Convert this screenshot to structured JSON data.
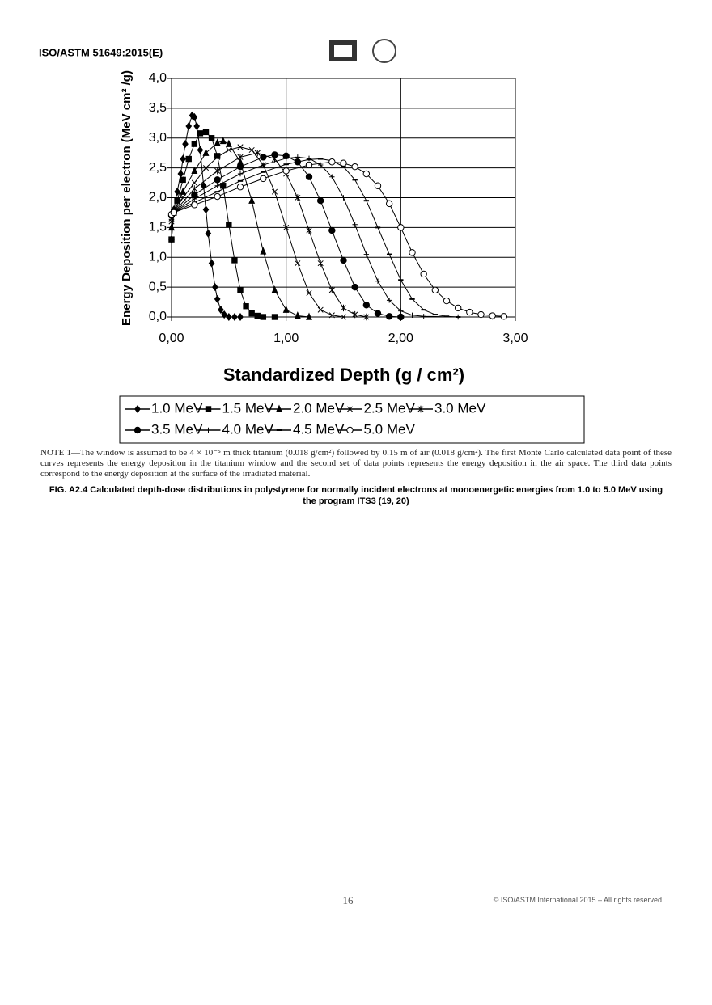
{
  "header": "ISO/ASTM 51649:2015(E)",
  "chart_data": {
    "type": "line",
    "y_label": "Energy Deposition per electron (MeV cm² /g)",
    "x_label": "Standardized Depth (g / cm²)",
    "xlim": [
      0,
      3
    ],
    "ylim": [
      0,
      4
    ],
    "xticks": [
      {
        "value": 0,
        "label": "0,00"
      },
      {
        "value": 1,
        "label": "1,00"
      },
      {
        "value": 2,
        "label": "2,00"
      },
      {
        "value": 3,
        "label": "3,00"
      }
    ],
    "yticks": [
      {
        "value": 0,
        "label": "0,0"
      },
      {
        "value": 0.5,
        "label": "0,5"
      },
      {
        "value": 1,
        "label": "1,0"
      },
      {
        "value": 1.5,
        "label": "1,5"
      },
      {
        "value": 2,
        "label": "2,0"
      },
      {
        "value": 2.5,
        "label": "2,5"
      },
      {
        "value": 3,
        "label": "3,0"
      },
      {
        "value": 3.5,
        "label": "3,5"
      },
      {
        "value": 4,
        "label": "4,0"
      }
    ],
    "grid": true,
    "series": [
      {
        "name": "1.0 MeV",
        "color": "#000000",
        "marker": "diamond",
        "x": [
          0,
          0.02,
          0.05,
          0.08,
          0.1,
          0.12,
          0.15,
          0.18,
          0.2,
          0.22,
          0.25,
          0.28,
          0.3,
          0.32,
          0.35,
          0.38,
          0.4,
          0.43,
          0.46,
          0.5,
          0.55,
          0.6
        ],
        "values": [
          1.3,
          1.8,
          2.1,
          2.4,
          2.65,
          2.9,
          3.2,
          3.38,
          3.35,
          3.2,
          2.8,
          2.2,
          1.8,
          1.4,
          0.9,
          0.5,
          0.3,
          0.12,
          0.04,
          0,
          0,
          0
        ]
      },
      {
        "name": "1.5 MeV",
        "color": "#000000",
        "marker": "square",
        "x": [
          0,
          0.02,
          0.05,
          0.1,
          0.15,
          0.2,
          0.25,
          0.3,
          0.35,
          0.4,
          0.45,
          0.5,
          0.55,
          0.6,
          0.65,
          0.7,
          0.75,
          0.8,
          0.9
        ],
        "values": [
          1.3,
          1.75,
          1.95,
          2.3,
          2.65,
          2.9,
          3.08,
          3.1,
          3.0,
          2.7,
          2.2,
          1.55,
          0.95,
          0.45,
          0.18,
          0.06,
          0.02,
          0,
          0
        ]
      },
      {
        "name": "2.0 MeV",
        "color": "#000000",
        "marker": "triangle",
        "x": [
          0,
          0.02,
          0.1,
          0.2,
          0.3,
          0.4,
          0.45,
          0.5,
          0.6,
          0.7,
          0.8,
          0.9,
          1.0,
          1.1,
          1.2
        ],
        "values": [
          1.5,
          1.75,
          2.1,
          2.45,
          2.75,
          2.92,
          2.95,
          2.9,
          2.6,
          1.95,
          1.1,
          0.45,
          0.12,
          0.02,
          0
        ]
      },
      {
        "name": "2.5 MeV",
        "color": "#000000",
        "marker": "cross",
        "x": [
          0,
          0.02,
          0.1,
          0.2,
          0.3,
          0.4,
          0.5,
          0.6,
          0.7,
          0.8,
          0.9,
          1.0,
          1.1,
          1.2,
          1.3,
          1.4,
          1.5
        ],
        "values": [
          1.6,
          1.75,
          2.0,
          2.25,
          2.5,
          2.68,
          2.8,
          2.85,
          2.8,
          2.55,
          2.1,
          1.5,
          0.9,
          0.4,
          0.12,
          0.03,
          0
        ]
      },
      {
        "name": "3.0 MeV",
        "color": "#000000",
        "marker": "star",
        "x": [
          0,
          0.02,
          0.2,
          0.4,
          0.6,
          0.75,
          0.9,
          1.0,
          1.1,
          1.2,
          1.3,
          1.4,
          1.5,
          1.6,
          1.7
        ],
        "values": [
          1.65,
          1.75,
          2.15,
          2.45,
          2.68,
          2.75,
          2.65,
          2.4,
          2.0,
          1.45,
          0.9,
          0.45,
          0.15,
          0.04,
          0
        ]
      },
      {
        "name": "3.5 MeV",
        "color": "#000000",
        "marker": "circle",
        "x": [
          0,
          0.02,
          0.2,
          0.4,
          0.6,
          0.8,
          0.9,
          1.0,
          1.1,
          1.2,
          1.3,
          1.4,
          1.5,
          1.6,
          1.7,
          1.8,
          1.9,
          2.0
        ],
        "values": [
          1.7,
          1.75,
          2.05,
          2.3,
          2.52,
          2.68,
          2.72,
          2.7,
          2.6,
          2.35,
          1.95,
          1.45,
          0.95,
          0.5,
          0.2,
          0.06,
          0.01,
          0
        ]
      },
      {
        "name": "4.0 MeV",
        "color": "#000000",
        "marker": "plus",
        "x": [
          0,
          0.02,
          0.2,
          0.4,
          0.6,
          0.8,
          1.0,
          1.1,
          1.2,
          1.3,
          1.4,
          1.5,
          1.6,
          1.7,
          1.8,
          1.9,
          2.0,
          2.1,
          2.2,
          2.5,
          2.8
        ],
        "values": [
          1.72,
          1.75,
          1.98,
          2.2,
          2.4,
          2.55,
          2.66,
          2.68,
          2.66,
          2.55,
          2.35,
          2.0,
          1.55,
          1.05,
          0.6,
          0.28,
          0.1,
          0.03,
          0.01,
          0,
          0
        ]
      },
      {
        "name": "4.5 MeV",
        "color": "#000000",
        "marker": "dash",
        "x": [
          0,
          0.02,
          0.2,
          0.4,
          0.6,
          0.8,
          1.0,
          1.2,
          1.3,
          1.4,
          1.5,
          1.6,
          1.7,
          1.8,
          1.9,
          2.0,
          2.1,
          2.2,
          2.3,
          2.4,
          2.5
        ],
        "values": [
          1.72,
          1.75,
          1.92,
          2.1,
          2.28,
          2.43,
          2.56,
          2.64,
          2.65,
          2.62,
          2.52,
          2.3,
          1.95,
          1.5,
          1.05,
          0.62,
          0.3,
          0.12,
          0.04,
          0.01,
          0
        ]
      },
      {
        "name": "5.0 MeV",
        "color": "#000000",
        "marker": "open-circle",
        "x": [
          0,
          0.02,
          0.2,
          0.4,
          0.6,
          0.8,
          1.0,
          1.2,
          1.4,
          1.5,
          1.6,
          1.7,
          1.8,
          1.9,
          2.0,
          2.1,
          2.2,
          2.3,
          2.4,
          2.5,
          2.6,
          2.7,
          2.8,
          2.9
        ],
        "values": [
          1.72,
          1.75,
          1.88,
          2.02,
          2.18,
          2.32,
          2.45,
          2.55,
          2.6,
          2.58,
          2.52,
          2.4,
          2.2,
          1.9,
          1.5,
          1.08,
          0.72,
          0.45,
          0.27,
          0.15,
          0.08,
          0.04,
          0.02,
          0.01
        ]
      }
    ]
  },
  "note": "NOTE 1—The window is assumed to be 4 × 10⁻⁵ m thick titanium (0.018 g/cm²) followed by 0.15 m of air (0.018 g/cm²). The first Monte Carlo calculated data point of these curves represents the energy deposition in the titanium window and the second set of data points represents the energy deposition in the air space. The third data points correspond to the energy deposition at the surface of the irradiated material.",
  "caption": "FIG. A2.4 Calculated depth-dose distributions in polystyrene for normally incident electrons at monoenergetic energies from 1.0 to 5.0 MeV using the program ITS3 (19, 20)",
  "footer": {
    "page": "16",
    "copyright": "© ISO/ASTM International 2015 – All rights reserved"
  }
}
